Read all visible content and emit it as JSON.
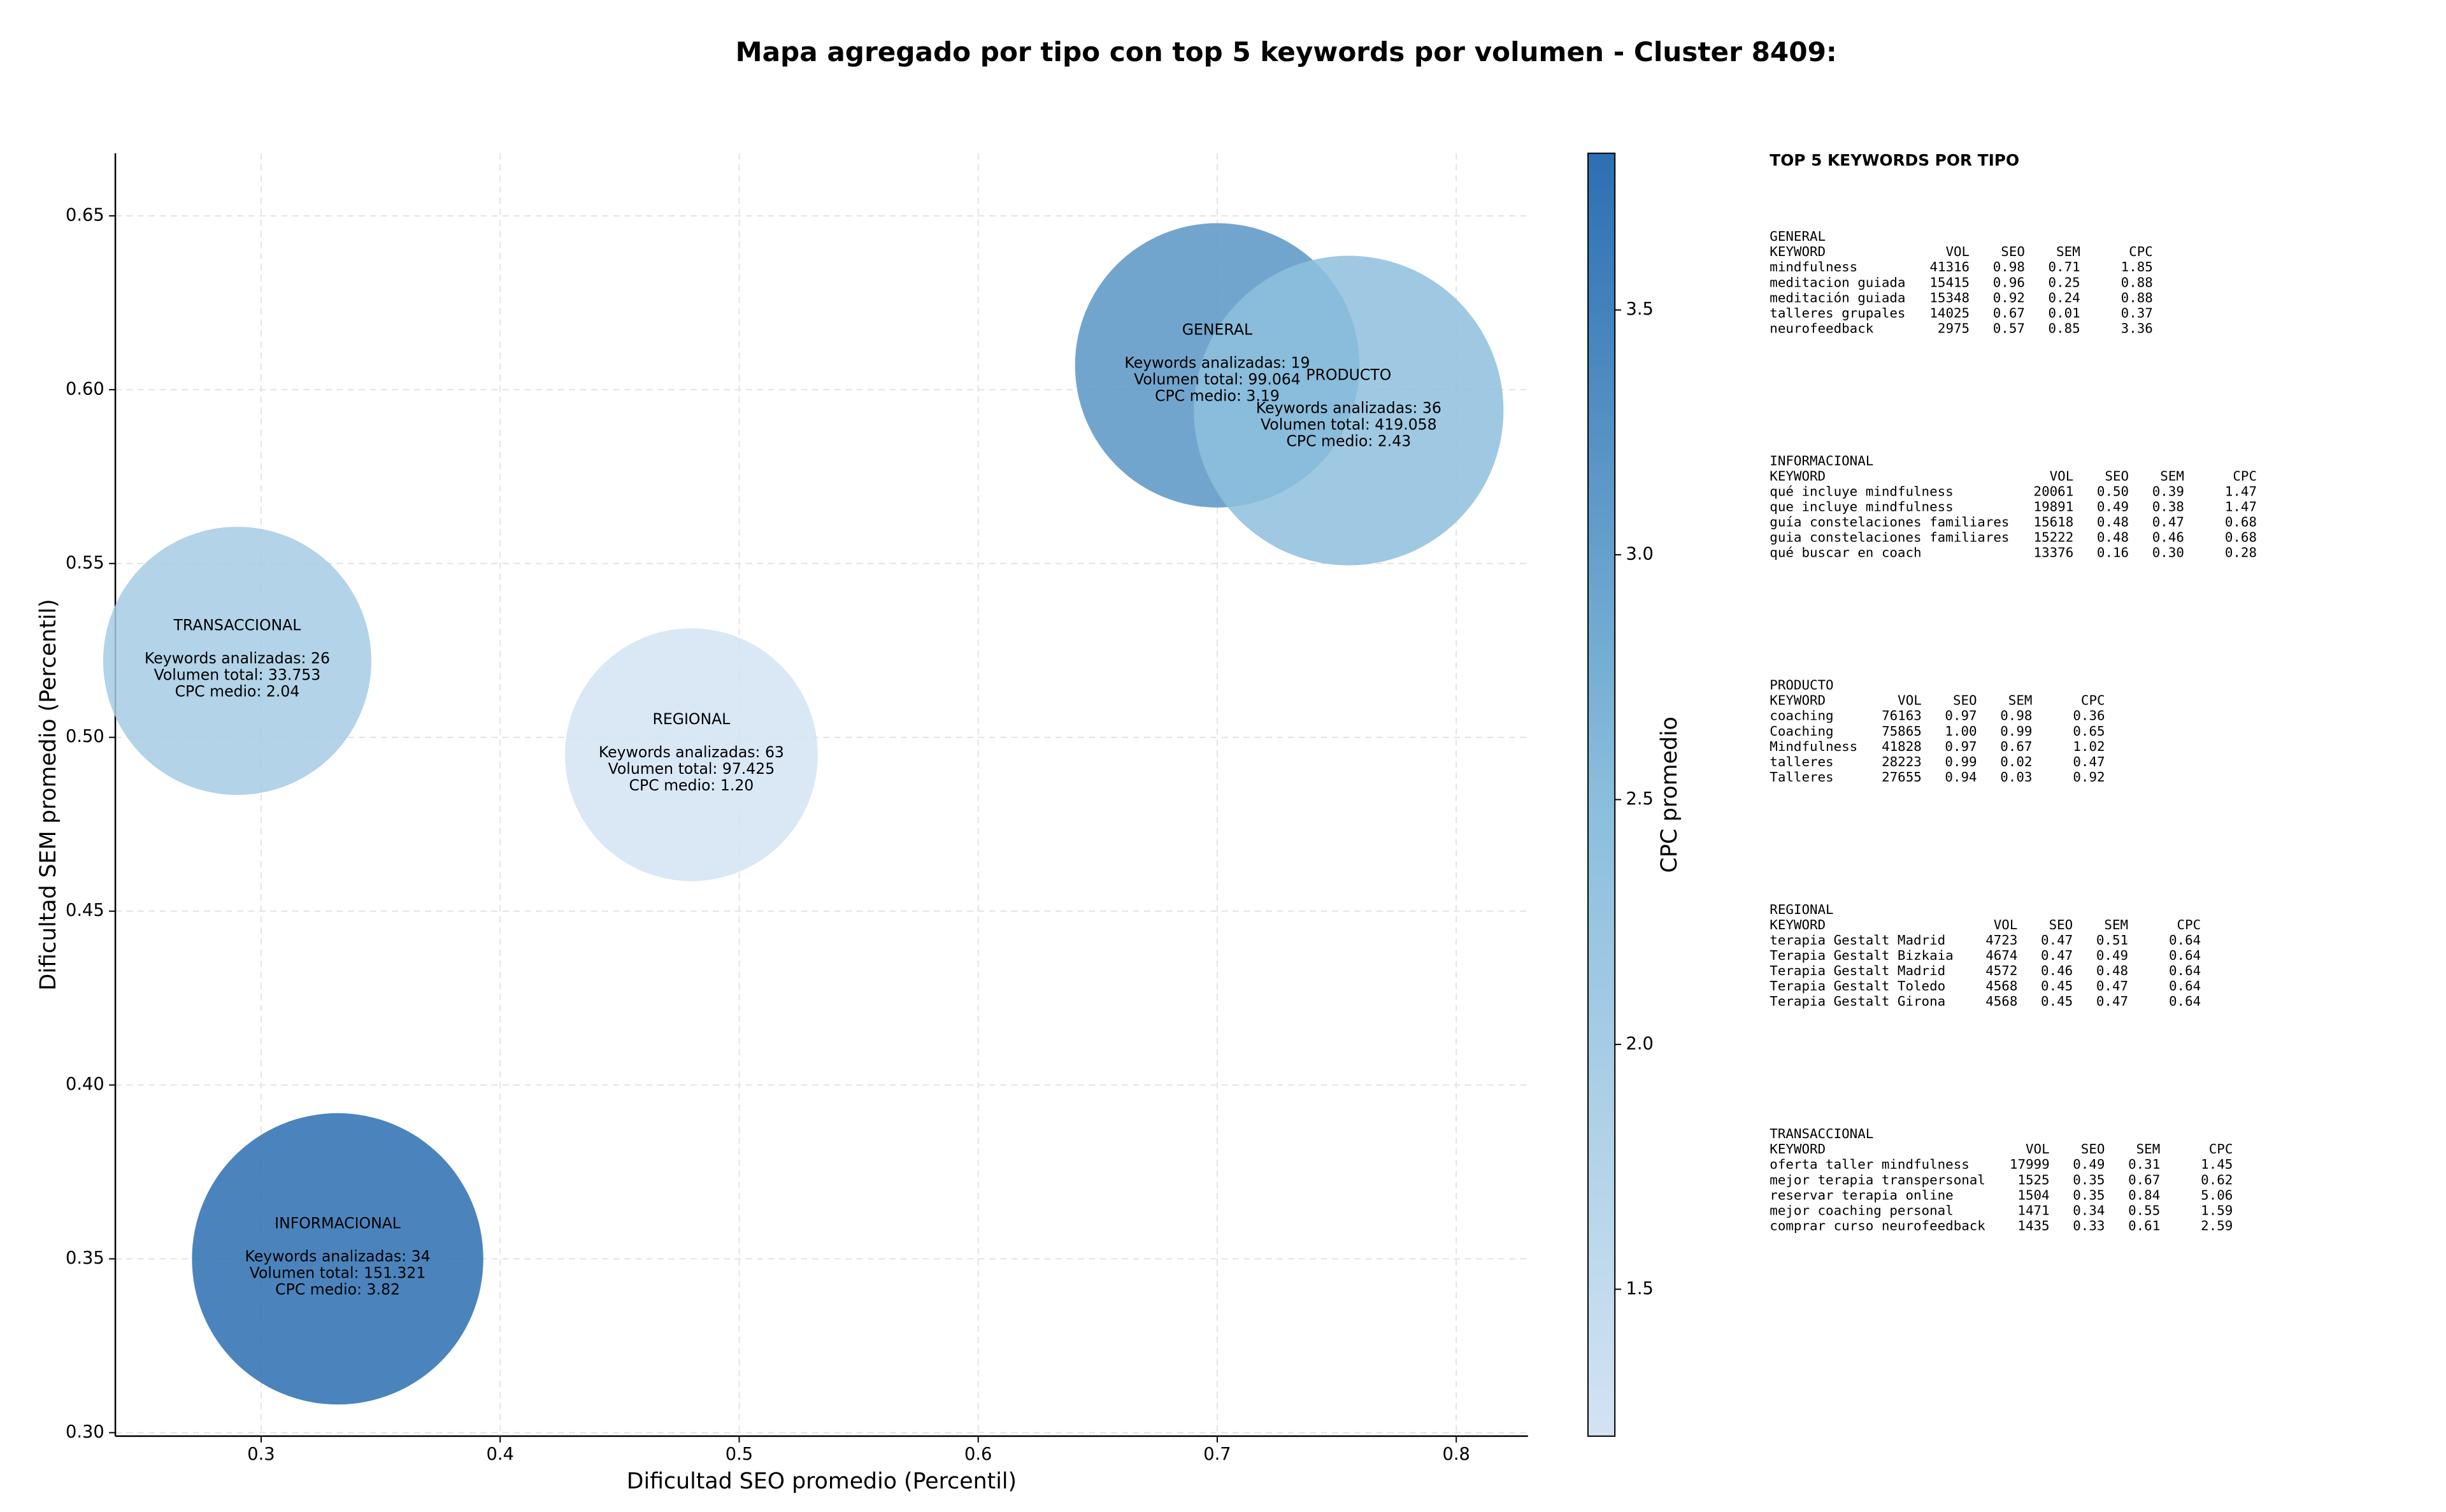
{
  "chart_data": {
    "type": "bubble",
    "title": "Mapa agregado por tipo con top 5 keywords por volumen - Cluster 8409:",
    "x_label": "Dificultad SEO promedio (Percentil)",
    "y_label": "Dificultad SEM promedio (Percentil)",
    "xlim": [
      0.239,
      0.83
    ],
    "ylim": [
      0.299,
      0.668
    ],
    "xticks": [
      0.3,
      0.4,
      0.5,
      0.6,
      0.7,
      0.8
    ],
    "yticks": [
      {
        "value": 0.3,
        "label": "0.30"
      },
      0.35,
      {
        "value": 0.4,
        "label": "0.40"
      },
      0.45,
      {
        "value": 0.5,
        "label": "0.50"
      },
      0.55,
      {
        "value": 0.6,
        "label": "0.60"
      },
      0.65
    ],
    "grid": true,
    "colorbar": {
      "label": "CPC promedio",
      "clim": [
        1.2,
        3.82
      ],
      "ticks": [
        1.5,
        {
          "value": 2.0,
          "label": "2.0"
        },
        2.5,
        {
          "value": 3.0,
          "label": "3.0"
        },
        3.5
      ],
      "colormap": [
        "#d3e3f3",
        "#89bedc",
        "#2c6fb2"
      ]
    },
    "points": [
      {
        "name": "GENERAL",
        "x": 0.7,
        "y": 0.607,
        "size": 8100,
        "cpc": 3.19,
        "annotation": [
          "Keywords analizadas: 19",
          "Volumen total: 99.064",
          "CPC medio: 3.19"
        ]
      },
      {
        "name": "PRODUCTO",
        "x": 0.755,
        "y": 0.594,
        "size": 9600,
        "cpc": 2.43,
        "annotation": [
          "Keywords analizadas: 36",
          "Volumen total: 419.058",
          "CPC medio: 2.43"
        ]
      },
      {
        "name": "TRANSACCIONAL",
        "x": 0.29,
        "y": 0.522,
        "size": 7200,
        "cpc": 2.04,
        "annotation": [
          "Keywords analizadas: 26",
          "Volumen total: 33.753",
          "CPC medio: 2.04"
        ]
      },
      {
        "name": "REGIONAL",
        "x": 0.48,
        "y": 0.495,
        "size": 6400,
        "cpc": 1.2,
        "annotation": [
          "Keywords analizadas: 63",
          "Volumen total: 97.425",
          "CPC medio: 1.20"
        ]
      },
      {
        "name": "INFORMACIONAL",
        "x": 0.332,
        "y": 0.35,
        "size": 8500,
        "cpc": 3.82,
        "annotation": [
          "Keywords analizadas: 34",
          "Volumen total: 151.321",
          "CPC medio: 3.82"
        ]
      }
    ],
    "keyword_table": {
      "title": "TOP 5 KEYWORDS POR TIPO",
      "columns": [
        "KEYWORD",
        "VOL",
        "SEO",
        "SEM",
        "CPC"
      ],
      "sections": [
        {
          "name": "GENERAL",
          "rows": [
            [
              "mindfulness",
              "41316",
              "0.98",
              "0.71",
              "1.85"
            ],
            [
              "meditacion guiada",
              "15415",
              "0.96",
              "0.25",
              "0.88"
            ],
            [
              "meditación guiada",
              "15348",
              "0.92",
              "0.24",
              "0.88"
            ],
            [
              "talleres grupales",
              "14025",
              "0.67",
              "0.01",
              "0.37"
            ],
            [
              "neurofeedback",
              "2975",
              "0.57",
              "0.85",
              "3.36"
            ]
          ]
        },
        {
          "name": "INFORMACIONAL",
          "rows": [
            [
              "qué incluye mindfulness",
              "20061",
              "0.50",
              "0.39",
              "1.47"
            ],
            [
              "que incluye mindfulness",
              "19891",
              "0.49",
              "0.38",
              "1.47"
            ],
            [
              "guía constelaciones familiares",
              "15618",
              "0.48",
              "0.47",
              "0.68"
            ],
            [
              "guia constelaciones familiares",
              "15222",
              "0.48",
              "0.46",
              "0.68"
            ],
            [
              "qué buscar en coach",
              "13376",
              "0.16",
              "0.30",
              "0.28"
            ]
          ]
        },
        {
          "name": "PRODUCTO",
          "rows": [
            [
              "coaching",
              "76163",
              "0.97",
              "0.98",
              "0.36"
            ],
            [
              "Coaching",
              "75865",
              "1.00",
              "0.99",
              "0.65"
            ],
            [
              "Mindfulness",
              "41828",
              "0.97",
              "0.67",
              "1.02"
            ],
            [
              "talleres",
              "28223",
              "0.99",
              "0.02",
              "0.47"
            ],
            [
              "Talleres",
              "27655",
              "0.94",
              "0.03",
              "0.92"
            ]
          ]
        },
        {
          "name": "REGIONAL",
          "rows": [
            [
              "terapia Gestalt Madrid",
              "4723",
              "0.47",
              "0.51",
              "0.64"
            ],
            [
              "Terapia Gestalt Bizkaia",
              "4674",
              "0.47",
              "0.49",
              "0.64"
            ],
            [
              "Terapia Gestalt Madrid",
              "4572",
              "0.46",
              "0.48",
              "0.64"
            ],
            [
              "Terapia Gestalt Toledo",
              "4568",
              "0.45",
              "0.47",
              "0.64"
            ],
            [
              "Terapia Gestalt Girona",
              "4568",
              "0.45",
              "0.47",
              "0.64"
            ]
          ]
        },
        {
          "name": "TRANSACCIONAL",
          "rows": [
            [
              "oferta taller mindfulness",
              "17999",
              "0.49",
              "0.31",
              "1.45"
            ],
            [
              "mejor terapia transpersonal",
              "1525",
              "0.35",
              "0.67",
              "0.62"
            ],
            [
              "reservar terapia online",
              "1504",
              "0.35",
              "0.84",
              "5.06"
            ],
            [
              "mejor coaching personal",
              "1471",
              "0.34",
              "0.55",
              "1.59"
            ],
            [
              "comprar curso neurofeedback",
              "1435",
              "0.33",
              "0.61",
              "2.59"
            ]
          ]
        }
      ]
    }
  }
}
